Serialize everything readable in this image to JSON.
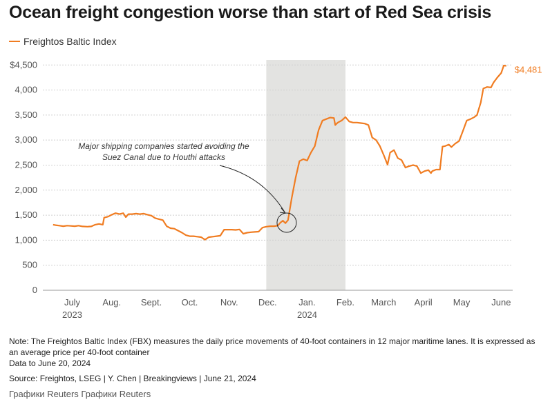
{
  "header": {
    "title": "Ocean freight congestion worse than start of Red Sea crisis"
  },
  "legend": {
    "label": "Freightos Baltic Index"
  },
  "chart_data": {
    "type": "line",
    "series": [
      {
        "name": "Freightos Baltic Index",
        "color": "#f07c21",
        "points": [
          [
            "2023-07-01",
            1310
          ],
          [
            "2023-07-03",
            1300
          ],
          [
            "2023-07-06",
            1290
          ],
          [
            "2023-07-09",
            1280
          ],
          [
            "2023-07-12",
            1290
          ],
          [
            "2023-07-15",
            1285
          ],
          [
            "2023-07-18",
            1280
          ],
          [
            "2023-07-21",
            1290
          ],
          [
            "2023-07-24",
            1275
          ],
          [
            "2023-07-28",
            1270
          ],
          [
            "2023-07-31",
            1275
          ],
          [
            "2023-08-03",
            1310
          ],
          [
            "2023-08-06",
            1325
          ],
          [
            "2023-08-09",
            1310
          ],
          [
            "2023-08-10",
            1450
          ],
          [
            "2023-08-13",
            1470
          ],
          [
            "2023-08-16",
            1510
          ],
          [
            "2023-08-19",
            1540
          ],
          [
            "2023-08-22",
            1520
          ],
          [
            "2023-08-25",
            1540
          ],
          [
            "2023-08-27",
            1460
          ],
          [
            "2023-08-29",
            1520
          ],
          [
            "2023-09-01",
            1520
          ],
          [
            "2023-09-04",
            1530
          ],
          [
            "2023-09-07",
            1520
          ],
          [
            "2023-09-10",
            1530
          ],
          [
            "2023-09-13",
            1510
          ],
          [
            "2023-09-16",
            1490
          ],
          [
            "2023-09-19",
            1440
          ],
          [
            "2023-09-22",
            1420
          ],
          [
            "2023-09-25",
            1400
          ],
          [
            "2023-09-28",
            1280
          ],
          [
            "2023-10-01",
            1240
          ],
          [
            "2023-10-04",
            1230
          ],
          [
            "2023-10-07",
            1190
          ],
          [
            "2023-10-10",
            1150
          ],
          [
            "2023-10-13",
            1100
          ],
          [
            "2023-10-16",
            1080
          ],
          [
            "2023-10-19",
            1080
          ],
          [
            "2023-10-22",
            1070
          ],
          [
            "2023-10-25",
            1060
          ],
          [
            "2023-10-28",
            1010
          ],
          [
            "2023-10-31",
            1060
          ],
          [
            "2023-11-03",
            1070
          ],
          [
            "2023-11-06",
            1080
          ],
          [
            "2023-11-09",
            1090
          ],
          [
            "2023-11-12",
            1210
          ],
          [
            "2023-11-15",
            1210
          ],
          [
            "2023-11-18",
            1210
          ],
          [
            "2023-11-21",
            1205
          ],
          [
            "2023-11-24",
            1215
          ],
          [
            "2023-11-27",
            1130
          ],
          [
            "2023-11-30",
            1150
          ],
          [
            "2023-12-03",
            1160
          ],
          [
            "2023-12-06",
            1165
          ],
          [
            "2023-12-09",
            1170
          ],
          [
            "2023-12-12",
            1250
          ],
          [
            "2023-12-15",
            1270
          ],
          [
            "2023-12-18",
            1280
          ],
          [
            "2023-12-21",
            1280
          ],
          [
            "2023-12-24",
            1290
          ],
          [
            "2023-12-26",
            1350
          ],
          [
            "2023-12-28",
            1390
          ],
          [
            "2023-12-30",
            1340
          ],
          [
            "2024-01-01",
            1400
          ],
          [
            "2024-01-04",
            1850
          ],
          [
            "2024-01-07",
            2250
          ],
          [
            "2024-01-10",
            2580
          ],
          [
            "2024-01-13",
            2620
          ],
          [
            "2024-01-16",
            2590
          ],
          [
            "2024-01-19",
            2750
          ],
          [
            "2024-01-22",
            2880
          ],
          [
            "2024-01-25",
            3200
          ],
          [
            "2024-01-28",
            3390
          ],
          [
            "2024-01-31",
            3420
          ],
          [
            "2024-02-03",
            3450
          ],
          [
            "2024-02-06",
            3440
          ],
          [
            "2024-02-07",
            3300
          ],
          [
            "2024-02-09",
            3350
          ],
          [
            "2024-02-12",
            3390
          ],
          [
            "2024-02-15",
            3460
          ],
          [
            "2024-02-18",
            3370
          ],
          [
            "2024-02-21",
            3350
          ],
          [
            "2024-02-24",
            3350
          ],
          [
            "2024-02-27",
            3340
          ],
          [
            "2024-03-01",
            3330
          ],
          [
            "2024-03-04",
            3300
          ],
          [
            "2024-03-07",
            3050
          ],
          [
            "2024-03-10",
            3000
          ],
          [
            "2024-03-13",
            2880
          ],
          [
            "2024-03-16",
            2700
          ],
          [
            "2024-03-19",
            2510
          ],
          [
            "2024-03-21",
            2750
          ],
          [
            "2024-03-24",
            2800
          ],
          [
            "2024-03-27",
            2640
          ],
          [
            "2024-03-30",
            2600
          ],
          [
            "2024-04-02",
            2450
          ],
          [
            "2024-04-05",
            2480
          ],
          [
            "2024-04-08",
            2500
          ],
          [
            "2024-04-11",
            2480
          ],
          [
            "2024-04-14",
            2340
          ],
          [
            "2024-04-17",
            2380
          ],
          [
            "2024-04-20",
            2400
          ],
          [
            "2024-04-22",
            2340
          ],
          [
            "2024-04-23",
            2380
          ],
          [
            "2024-04-26",
            2410
          ],
          [
            "2024-04-29",
            2410
          ],
          [
            "2024-05-01",
            2870
          ],
          [
            "2024-05-03",
            2880
          ],
          [
            "2024-05-06",
            2910
          ],
          [
            "2024-05-08",
            2860
          ],
          [
            "2024-05-11",
            2930
          ],
          [
            "2024-05-14",
            2980
          ],
          [
            "2024-05-17",
            3180
          ],
          [
            "2024-05-20",
            3390
          ],
          [
            "2024-05-23",
            3420
          ],
          [
            "2024-05-26",
            3460
          ],
          [
            "2024-05-28",
            3500
          ],
          [
            "2024-05-31",
            3750
          ],
          [
            "2024-06-02",
            4030
          ],
          [
            "2024-06-05",
            4060
          ],
          [
            "2024-06-08",
            4050
          ],
          [
            "2024-06-10",
            4150
          ],
          [
            "2024-06-13",
            4250
          ],
          [
            "2024-06-16",
            4340
          ],
          [
            "2024-06-18",
            4490
          ],
          [
            "2024-06-20",
            4481
          ]
        ]
      }
    ],
    "xlim": [
      "2023-06-23",
      "2024-06-25"
    ],
    "ylim": [
      0,
      4600
    ],
    "yticks": [
      0,
      500,
      1000,
      1500,
      2000,
      2500,
      3000,
      3500,
      4000
    ],
    "ytick_labels": [
      "0",
      "500",
      "1,000",
      "1,500",
      "2,000",
      "2,500",
      "3,000",
      "3,500",
      "4,000"
    ],
    "ytop_label": "$4,500",
    "ytop_value": 4500,
    "xticks": [
      {
        "date": "2023-07-16",
        "label": "July",
        "sub": "2023"
      },
      {
        "date": "2023-08-16",
        "label": "Aug.",
        "sub": ""
      },
      {
        "date": "2023-09-16",
        "label": "Sept.",
        "sub": ""
      },
      {
        "date": "2023-10-16",
        "label": "Oct.",
        "sub": ""
      },
      {
        "date": "2023-11-16",
        "label": "Nov.",
        "sub": ""
      },
      {
        "date": "2023-12-16",
        "label": "Dec.",
        "sub": ""
      },
      {
        "date": "2024-01-16",
        "label": "Jan.",
        "sub": "2024"
      },
      {
        "date": "2024-02-15",
        "label": "Feb.",
        "sub": ""
      },
      {
        "date": "2024-03-16",
        "label": "March",
        "sub": ""
      },
      {
        "date": "2024-04-16",
        "label": "April",
        "sub": ""
      },
      {
        "date": "2024-05-16",
        "label": "May",
        "sub": ""
      },
      {
        "date": "2024-06-16",
        "label": "June",
        "sub": ""
      }
    ],
    "shaded_range": [
      "2023-12-15",
      "2024-02-15"
    ],
    "end_label": "$4,481",
    "annotation": {
      "line1": "Major shipping companies started avoiding the",
      "line2": "Suez Canal due to Houthi attacks",
      "target_date": "2023-12-31",
      "target_value": 1350
    },
    "grid": "horizontal"
  },
  "footer": {
    "note": "Note: The Freightos Baltic Index (FBX) measures the daily price movements of 40-foot containers in 12 major maritime lanes. It is expressed as an average price per 40-foot container",
    "data_line": "Data to June 20, 2024",
    "source": "Source: Freightos, LSEG | Y. Chen | Breakingviews | June 21, 2024",
    "credit": "Графики Reuters Графики Reuters"
  }
}
